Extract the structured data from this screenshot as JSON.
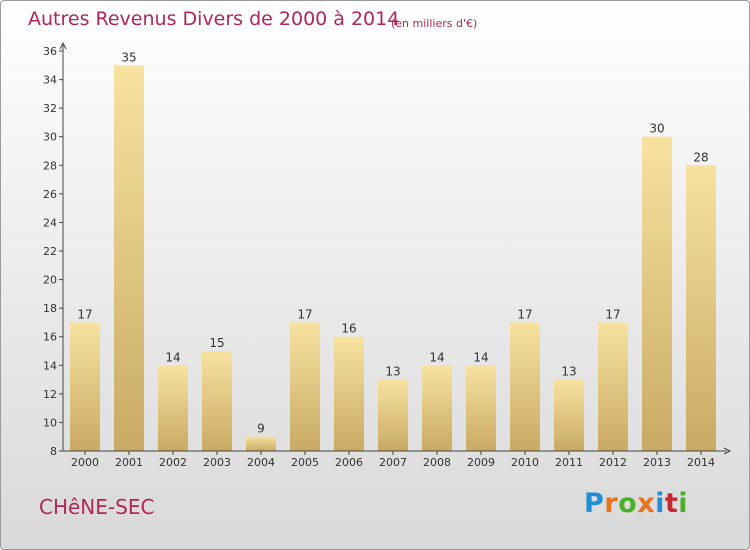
{
  "title": "Autres Revenus Divers de 2000 à 2014",
  "subtitle": "(en milliers d'€)",
  "commune": "CHêNE-SEC",
  "brand": {
    "letters": [
      "P",
      "r",
      "o",
      "x",
      "i",
      "t",
      "i"
    ],
    "colors": [
      "#1e8fd6",
      "#e8731c",
      "#4caf2a",
      "#e8731c",
      "#1e8fd6",
      "#c6262e",
      "#4caf2a"
    ]
  },
  "chart_data": {
    "type": "bar",
    "categories": [
      "2000",
      "2001",
      "2002",
      "2003",
      "2004",
      "2005",
      "2006",
      "2007",
      "2008",
      "2009",
      "2010",
      "2011",
      "2012",
      "2013",
      "2014"
    ],
    "values": [
      17,
      35,
      14,
      15,
      9,
      17,
      16,
      13,
      14,
      14,
      17,
      13,
      17,
      30,
      28
    ],
    "title": "Autres Revenus Divers de 2000 à 2014",
    "subtitle": "(en milliers d'€)",
    "ylim": [
      8,
      36
    ],
    "yticks": [
      8,
      10,
      12,
      14,
      16,
      18,
      20,
      22,
      24,
      26,
      28,
      30,
      32,
      34,
      36
    ],
    "grid": false,
    "legend": "none",
    "bar_color_light": "#f7e2a0",
    "bar_color_dark": "#c9aa64",
    "axis_color": "#444444",
    "text_color": "#333333"
  }
}
